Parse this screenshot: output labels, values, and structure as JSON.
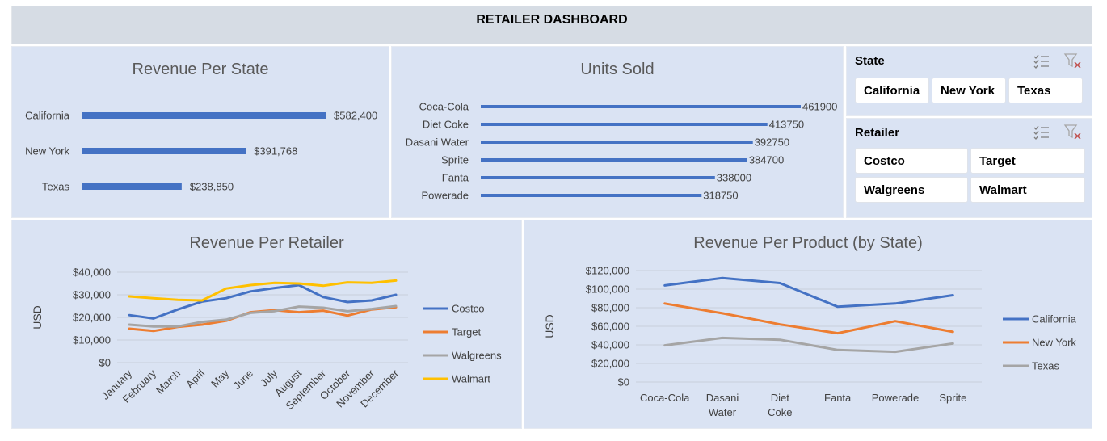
{
  "dashboard_title": "RETAILER DASHBOARD",
  "slicers": {
    "state": {
      "title": "State",
      "items": [
        "California",
        "New York",
        "Texas"
      ]
    },
    "retailer": {
      "title": "Retailer",
      "items": [
        "Costco",
        "Target",
        "Walgreens",
        "Walmart"
      ]
    },
    "icons": [
      "multi-select-icon",
      "clear-filter-icon"
    ]
  },
  "colors": {
    "blue": "#4472c4",
    "orange": "#ed7d31",
    "gray": "#a5a5a5",
    "yellow": "#ffc000",
    "panel": "#dae3f3",
    "header": "#d6dce4"
  },
  "chart_data": [
    {
      "type": "bar",
      "orientation": "horizontal",
      "title": "Revenue Per State",
      "categories": [
        "California",
        "New York",
        "Texas"
      ],
      "values": [
        582400,
        391768,
        238850
      ],
      "labels": [
        "$582,400",
        "$391,768",
        "$238,850"
      ],
      "color": "#4472c4"
    },
    {
      "type": "bar",
      "orientation": "horizontal",
      "title": "Units Sold",
      "categories": [
        "Coca-Cola",
        "Diet Coke",
        "Dasani Water",
        "Sprite",
        "Fanta",
        "Powerade"
      ],
      "values": [
        461900,
        413750,
        392750,
        384700,
        338000,
        318750
      ],
      "labels": [
        "461900",
        "413750",
        "392750",
        "384700",
        "338000",
        "318750"
      ],
      "color": "#4472c4"
    },
    {
      "type": "line",
      "title": "Revenue Per Retailer",
      "ylabel": "USD",
      "x": [
        "January",
        "February",
        "March",
        "April",
        "May",
        "June",
        "July",
        "August",
        "September",
        "October",
        "November",
        "December"
      ],
      "ylim": [
        0,
        40000
      ],
      "yticks": [
        "$0",
        "$10,000",
        "$20,000",
        "$30,000",
        "$40,000"
      ],
      "legend_position": "right",
      "series": [
        {
          "name": "Costco",
          "color": "#4472c4",
          "values": [
            21000,
            19500,
            23500,
            27000,
            28500,
            31500,
            33000,
            34300,
            29000,
            26800,
            27500,
            30000
          ]
        },
        {
          "name": "Target",
          "color": "#ed7d31",
          "values": [
            15000,
            14000,
            15800,
            16800,
            18500,
            22300,
            23200,
            22300,
            23000,
            20800,
            23500,
            24500
          ]
        },
        {
          "name": "Walgreens",
          "color": "#a5a5a5",
          "values": [
            16800,
            16000,
            16000,
            18000,
            19000,
            22000,
            22800,
            24800,
            24300,
            22700,
            23700,
            25000
          ]
        },
        {
          "name": "Walmart",
          "color": "#ffc000",
          "values": [
            29300,
            28500,
            27800,
            27500,
            32800,
            34300,
            35300,
            35000,
            34000,
            35500,
            35300,
            36300
          ]
        }
      ]
    },
    {
      "type": "line",
      "title": "Revenue Per Product (by State)",
      "ylabel": "USD",
      "x": [
        "Coca-Cola",
        "Dasani Water",
        "Diet Coke",
        "Fanta",
        "Powerade",
        "Sprite"
      ],
      "ylim": [
        0,
        120000
      ],
      "yticks": [
        "$0",
        "$20,000",
        "$40,000",
        "$60,000",
        "$80,000",
        "$100,000",
        "$120,000"
      ],
      "legend_position": "right",
      "series": [
        {
          "name": "California",
          "color": "#4472c4",
          "values": [
            104000,
            112000,
            106500,
            81000,
            84500,
            93500
          ]
        },
        {
          "name": "New York",
          "color": "#ed7d31",
          "values": [
            84500,
            74000,
            62000,
            52500,
            65500,
            54000
          ]
        },
        {
          "name": "Texas",
          "color": "#a5a5a5",
          "values": [
            39500,
            47500,
            45500,
            34500,
            32500,
            41500
          ]
        }
      ]
    }
  ]
}
